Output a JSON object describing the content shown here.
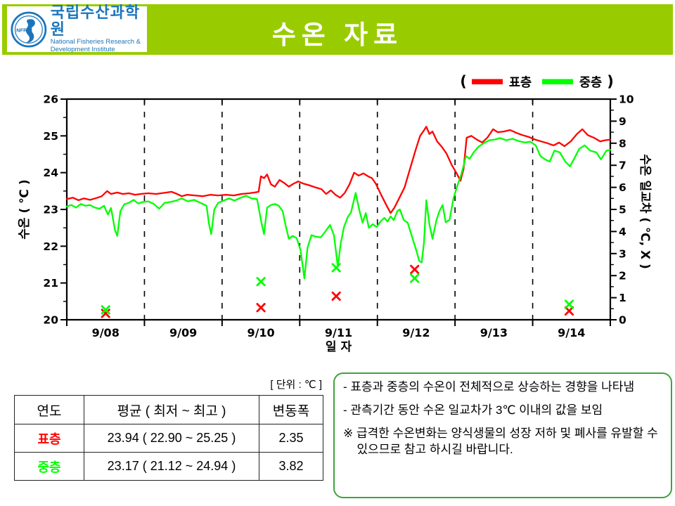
{
  "header": {
    "title": "수온 자료",
    "banner_color": "#99CC00",
    "logo_blue": "#1B75BC",
    "logo": {
      "org_kr": "국립수산과학원",
      "org_en_1": "National Fisheries Research &",
      "org_en_2": "Development Institute",
      "seal_text": "NFRDI"
    }
  },
  "chart_data": {
    "type": "line",
    "x_axis": {
      "label": "일 자",
      "categories": [
        "9/08",
        "9/09",
        "9/10",
        "9/11",
        "9/12",
        "9/13",
        "9/14"
      ]
    },
    "y_left": {
      "label": "수온 ( ℃ )",
      "min": 20,
      "max": 26,
      "tick_step": 1,
      "minor_step": 0.5
    },
    "y_right": {
      "label": "수온 일교차 ( ℃, X )",
      "min": 0,
      "max": 10,
      "tick_step": 1,
      "minor_step": 0.5
    },
    "grid": "dashed-vertical-day-boundaries",
    "legend": {
      "open": "(",
      "close": ")",
      "position": "top-right",
      "items": [
        {
          "name": "표층",
          "color": "#FF0000"
        },
        {
          "name": "중층",
          "color": "#00FF00"
        }
      ]
    },
    "series": [
      {
        "name": "표층",
        "color": "#FF0000",
        "axis": "left",
        "points": [
          [
            0.0,
            23.28
          ],
          [
            0.08,
            23.32
          ],
          [
            0.15,
            23.25
          ],
          [
            0.22,
            23.3
          ],
          [
            0.3,
            23.26
          ],
          [
            0.38,
            23.31
          ],
          [
            0.45,
            23.36
          ],
          [
            0.52,
            23.5
          ],
          [
            0.57,
            23.42
          ],
          [
            0.65,
            23.46
          ],
          [
            0.72,
            23.42
          ],
          [
            0.8,
            23.44
          ],
          [
            0.88,
            23.4
          ],
          [
            0.95,
            23.42
          ],
          [
            1.05,
            23.44
          ],
          [
            1.15,
            23.42
          ],
          [
            1.25,
            23.45
          ],
          [
            1.35,
            23.48
          ],
          [
            1.42,
            23.42
          ],
          [
            1.48,
            23.36
          ],
          [
            1.55,
            23.4
          ],
          [
            1.65,
            23.38
          ],
          [
            1.75,
            23.36
          ],
          [
            1.85,
            23.4
          ],
          [
            1.95,
            23.38
          ],
          [
            2.05,
            23.4
          ],
          [
            2.15,
            23.38
          ],
          [
            2.25,
            23.42
          ],
          [
            2.35,
            23.44
          ],
          [
            2.42,
            23.46
          ],
          [
            2.47,
            23.48
          ],
          [
            2.5,
            23.9
          ],
          [
            2.54,
            23.85
          ],
          [
            2.58,
            23.95
          ],
          [
            2.63,
            23.68
          ],
          [
            2.68,
            23.62
          ],
          [
            2.74,
            23.8
          ],
          [
            2.8,
            23.72
          ],
          [
            2.86,
            23.62
          ],
          [
            2.92,
            23.7
          ],
          [
            2.98,
            23.76
          ],
          [
            3.05,
            23.7
          ],
          [
            3.12,
            23.66
          ],
          [
            3.2,
            23.6
          ],
          [
            3.28,
            23.55
          ],
          [
            3.34,
            23.42
          ],
          [
            3.4,
            23.52
          ],
          [
            3.46,
            23.4
          ],
          [
            3.52,
            23.32
          ],
          [
            3.58,
            23.45
          ],
          [
            3.64,
            23.68
          ],
          [
            3.7,
            24.0
          ],
          [
            3.76,
            23.92
          ],
          [
            3.82,
            23.98
          ],
          [
            3.88,
            23.9
          ],
          [
            3.93,
            23.85
          ],
          [
            3.98,
            23.7
          ],
          [
            4.06,
            23.35
          ],
          [
            4.12,
            23.1
          ],
          [
            4.17,
            22.9
          ],
          [
            4.22,
            23.05
          ],
          [
            4.28,
            23.3
          ],
          [
            4.35,
            23.6
          ],
          [
            4.42,
            24.1
          ],
          [
            4.49,
            24.6
          ],
          [
            4.55,
            25.0
          ],
          [
            4.6,
            25.15
          ],
          [
            4.63,
            25.25
          ],
          [
            4.67,
            25.05
          ],
          [
            4.71,
            25.12
          ],
          [
            4.77,
            24.85
          ],
          [
            4.83,
            24.7
          ],
          [
            4.89,
            24.52
          ],
          [
            4.96,
            24.2
          ],
          [
            5.02,
            23.98
          ],
          [
            5.07,
            23.78
          ],
          [
            5.11,
            24.1
          ],
          [
            5.15,
            24.95
          ],
          [
            5.21,
            25.0
          ],
          [
            5.28,
            24.9
          ],
          [
            5.35,
            24.82
          ],
          [
            5.42,
            24.96
          ],
          [
            5.49,
            25.18
          ],
          [
            5.55,
            25.1
          ],
          [
            5.63,
            25.12
          ],
          [
            5.71,
            25.16
          ],
          [
            5.79,
            25.08
          ],
          [
            5.87,
            25.02
          ],
          [
            5.95,
            24.97
          ],
          [
            6.03,
            24.9
          ],
          [
            6.11,
            24.85
          ],
          [
            6.19,
            24.8
          ],
          [
            6.27,
            24.74
          ],
          [
            6.34,
            24.82
          ],
          [
            6.41,
            24.72
          ],
          [
            6.49,
            24.85
          ],
          [
            6.57,
            25.05
          ],
          [
            6.64,
            25.18
          ],
          [
            6.71,
            25.02
          ],
          [
            6.79,
            24.95
          ],
          [
            6.87,
            24.85
          ],
          [
            6.93,
            24.88
          ],
          [
            7.0,
            24.9
          ]
        ]
      },
      {
        "name": "중층",
        "color": "#00FF00",
        "axis": "left",
        "points": [
          [
            0.0,
            23.08
          ],
          [
            0.06,
            23.12
          ],
          [
            0.12,
            23.05
          ],
          [
            0.18,
            23.15
          ],
          [
            0.24,
            23.1
          ],
          [
            0.3,
            23.12
          ],
          [
            0.36,
            23.05
          ],
          [
            0.42,
            23.02
          ],
          [
            0.48,
            23.1
          ],
          [
            0.53,
            22.86
          ],
          [
            0.57,
            23.04
          ],
          [
            0.62,
            22.44
          ],
          [
            0.65,
            22.28
          ],
          [
            0.69,
            22.95
          ],
          [
            0.74,
            23.14
          ],
          [
            0.8,
            23.18
          ],
          [
            0.86,
            23.26
          ],
          [
            0.92,
            23.16
          ],
          [
            0.98,
            23.2
          ],
          [
            1.05,
            23.22
          ],
          [
            1.12,
            23.15
          ],
          [
            1.19,
            23.02
          ],
          [
            1.26,
            23.18
          ],
          [
            1.33,
            23.2
          ],
          [
            1.41,
            23.24
          ],
          [
            1.48,
            23.3
          ],
          [
            1.56,
            23.22
          ],
          [
            1.64,
            23.26
          ],
          [
            1.72,
            23.18
          ],
          [
            1.8,
            23.1
          ],
          [
            1.83,
            22.62
          ],
          [
            1.86,
            22.33
          ],
          [
            1.9,
            23.0
          ],
          [
            1.95,
            23.18
          ],
          [
            2.02,
            23.24
          ],
          [
            2.09,
            23.3
          ],
          [
            2.16,
            23.24
          ],
          [
            2.24,
            23.32
          ],
          [
            2.31,
            23.37
          ],
          [
            2.38,
            23.3
          ],
          [
            2.45,
            23.28
          ],
          [
            2.51,
            22.6
          ],
          [
            2.54,
            22.33
          ],
          [
            2.58,
            23.05
          ],
          [
            2.63,
            23.12
          ],
          [
            2.68,
            23.15
          ],
          [
            2.73,
            23.1
          ],
          [
            2.78,
            22.95
          ],
          [
            2.82,
            22.55
          ],
          [
            2.86,
            22.2
          ],
          [
            2.91,
            22.28
          ],
          [
            2.96,
            22.22
          ],
          [
            3.01,
            21.9
          ],
          [
            3.06,
            21.12
          ],
          [
            3.1,
            21.95
          ],
          [
            3.15,
            22.3
          ],
          [
            3.21,
            22.26
          ],
          [
            3.27,
            22.24
          ],
          [
            3.33,
            22.4
          ],
          [
            3.39,
            22.58
          ],
          [
            3.44,
            22.3
          ],
          [
            3.47,
            21.8
          ],
          [
            3.49,
            21.45
          ],
          [
            3.53,
            22.1
          ],
          [
            3.57,
            22.52
          ],
          [
            3.62,
            22.8
          ],
          [
            3.66,
            22.92
          ],
          [
            3.72,
            23.45
          ],
          [
            3.77,
            22.96
          ],
          [
            3.81,
            22.64
          ],
          [
            3.85,
            22.9
          ],
          [
            3.89,
            22.5
          ],
          [
            3.94,
            22.6
          ],
          [
            3.99,
            22.52
          ],
          [
            4.04,
            22.67
          ],
          [
            4.09,
            22.77
          ],
          [
            4.13,
            22.67
          ],
          [
            4.17,
            22.81
          ],
          [
            4.21,
            22.71
          ],
          [
            4.26,
            22.96
          ],
          [
            4.29,
            23.0
          ],
          [
            4.34,
            22.71
          ],
          [
            4.39,
            22.64
          ],
          [
            4.44,
            22.3
          ],
          [
            4.5,
            21.9
          ],
          [
            4.54,
            21.6
          ],
          [
            4.57,
            21.56
          ],
          [
            4.6,
            22.1
          ],
          [
            4.63,
            23.25
          ],
          [
            4.67,
            22.6
          ],
          [
            4.71,
            22.2
          ],
          [
            4.76,
            22.7
          ],
          [
            4.8,
            22.96
          ],
          [
            4.84,
            23.12
          ],
          [
            4.88,
            22.65
          ],
          [
            4.93,
            22.72
          ],
          [
            4.98,
            23.3
          ],
          [
            5.03,
            23.65
          ],
          [
            5.08,
            23.95
          ],
          [
            5.11,
            24.18
          ],
          [
            5.14,
            24.45
          ],
          [
            5.19,
            24.38
          ],
          [
            5.24,
            24.55
          ],
          [
            5.3,
            24.7
          ],
          [
            5.37,
            24.8
          ],
          [
            5.44,
            24.88
          ],
          [
            5.51,
            24.9
          ],
          [
            5.58,
            24.94
          ],
          [
            5.66,
            24.88
          ],
          [
            5.74,
            24.92
          ],
          [
            5.82,
            24.86
          ],
          [
            5.9,
            24.82
          ],
          [
            5.97,
            24.84
          ],
          [
            6.04,
            24.74
          ],
          [
            6.1,
            24.45
          ],
          [
            6.16,
            24.36
          ],
          [
            6.22,
            24.3
          ],
          [
            6.28,
            24.6
          ],
          [
            6.35,
            24.55
          ],
          [
            6.42,
            24.3
          ],
          [
            6.48,
            24.17
          ],
          [
            6.54,
            24.4
          ],
          [
            6.6,
            24.65
          ],
          [
            6.67,
            24.74
          ],
          [
            6.74,
            24.6
          ],
          [
            6.82,
            24.55
          ],
          [
            6.88,
            24.36
          ],
          [
            6.95,
            24.6
          ],
          [
            7.0,
            24.62
          ]
        ]
      }
    ],
    "daily_range_markers": {
      "symbol": "X",
      "axis": "right",
      "points": [
        {
          "day": 0.5,
          "surface": 0.29,
          "middle": 0.45
        },
        {
          "day": 2.5,
          "surface": 0.55,
          "middle": 1.73
        },
        {
          "day": 3.47,
          "surface": 1.07,
          "middle": 2.36
        },
        {
          "day": 4.48,
          "surface": 2.28,
          "middle": 1.88
        },
        {
          "day": 6.47,
          "surface": 0.4,
          "middle": 0.7
        }
      ]
    }
  },
  "table": {
    "unit_label": "[ 단위 : ℃ ]",
    "headers": [
      "연도",
      "평균 ( 최저 ~ 최고 )",
      "변동폭"
    ],
    "rows": [
      {
        "name": "표층",
        "color": "#FF0000",
        "stats": "23.94 ( 22.90 ~ 25.25 )",
        "range": "2.35"
      },
      {
        "name": "중층",
        "color": "#00FF00",
        "stats": "23.17 ( 21.12 ~ 24.94 )",
        "range": "3.82"
      }
    ]
  },
  "notes": {
    "border_color": "#3FA33F",
    "lines": [
      "- 표층과 중층의 수온이 전체적으로 상승하는 경향을 나타냄",
      "- 관측기간 동안 수온 일교차가 3℃ 이내의 값을 보임",
      "※ 급격한 수온변화는 양식생물의 성장 저하 및 폐사를 유발할 수 있으므로 참고 하시길 바랍니다."
    ]
  }
}
